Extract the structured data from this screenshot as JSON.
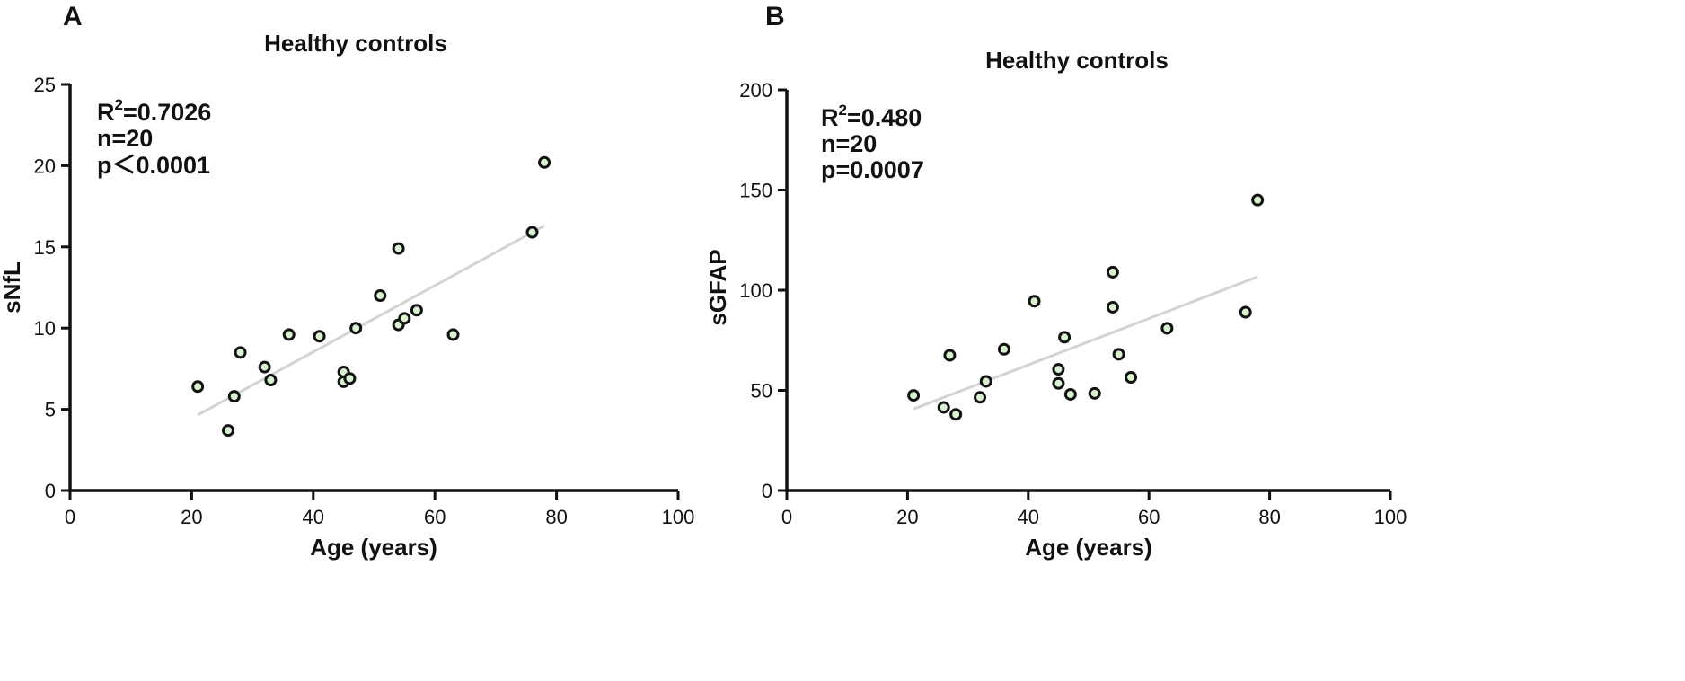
{
  "chart_data": [
    {
      "panel": "A",
      "type": "scatter",
      "title": "Healthy controls",
      "xlabel": "Age (years)",
      "ylabel": "sNfL",
      "xlim": [
        0,
        100
      ],
      "ylim": [
        0,
        25
      ],
      "xticks": [
        0,
        20,
        40,
        60,
        80,
        100
      ],
      "yticks": [
        0,
        5,
        10,
        15,
        20,
        25
      ],
      "points": [
        [
          21,
          6.4
        ],
        [
          26,
          3.7
        ],
        [
          27,
          5.8
        ],
        [
          28,
          8.5
        ],
        [
          32,
          7.6
        ],
        [
          33,
          6.8
        ],
        [
          36,
          9.6
        ],
        [
          41,
          9.5
        ],
        [
          45,
          7.3
        ],
        [
          45,
          6.7
        ],
        [
          46,
          6.9
        ],
        [
          47,
          10.0
        ],
        [
          51,
          12.0
        ],
        [
          54,
          14.9
        ],
        [
          54,
          10.2
        ],
        [
          55,
          10.6
        ],
        [
          57,
          11.1
        ],
        [
          63,
          9.6
        ],
        [
          76,
          15.9
        ],
        [
          78,
          20.2
        ]
      ],
      "fit_line": [
        [
          21,
          4.65
        ],
        [
          78,
          16.3
        ]
      ],
      "annotations": {
        "r2_prefix": "R",
        "r2_sup": "2",
        "r2_value": "=0.7026",
        "n": "n=20",
        "p": "p＜0.0001"
      },
      "grid": false,
      "colors": {
        "point_fill": "#d9f2d0",
        "point_edge": "#111111",
        "fit_line": "#d3d3d3"
      }
    },
    {
      "panel": "B",
      "type": "scatter",
      "title": "Healthy controls",
      "xlabel": "Age (years)",
      "ylabel": "sGFAP",
      "xlim": [
        0,
        100
      ],
      "ylim": [
        0,
        200
      ],
      "xticks": [
        0,
        20,
        40,
        60,
        80,
        100
      ],
      "yticks": [
        0,
        50,
        100,
        150,
        200
      ],
      "points": [
        [
          21,
          47.5
        ],
        [
          26,
          41.5
        ],
        [
          27,
          67.5
        ],
        [
          28,
          38
        ],
        [
          32,
          46.5
        ],
        [
          33,
          54.5
        ],
        [
          36,
          70.5
        ],
        [
          41,
          94.5
        ],
        [
          45,
          60.5
        ],
        [
          45,
          53.5
        ],
        [
          46,
          76.5
        ],
        [
          47,
          48
        ],
        [
          51,
          48.5
        ],
        [
          54,
          109
        ],
        [
          54,
          91.5
        ],
        [
          55,
          68
        ],
        [
          57,
          56.5
        ],
        [
          63,
          81
        ],
        [
          76,
          89
        ],
        [
          78,
          145
        ]
      ],
      "fit_line": [
        [
          21,
          40.7
        ],
        [
          78,
          106.7
        ]
      ],
      "annotations": {
        "r2_prefix": "R",
        "r2_sup": "2",
        "r2_value": "=0.480",
        "n": "n=20",
        "p": "p=0.0007"
      },
      "grid": false,
      "colors": {
        "point_fill": "#d9f2d0",
        "point_edge": "#111111",
        "fit_line": "#d3d3d3"
      }
    }
  ]
}
